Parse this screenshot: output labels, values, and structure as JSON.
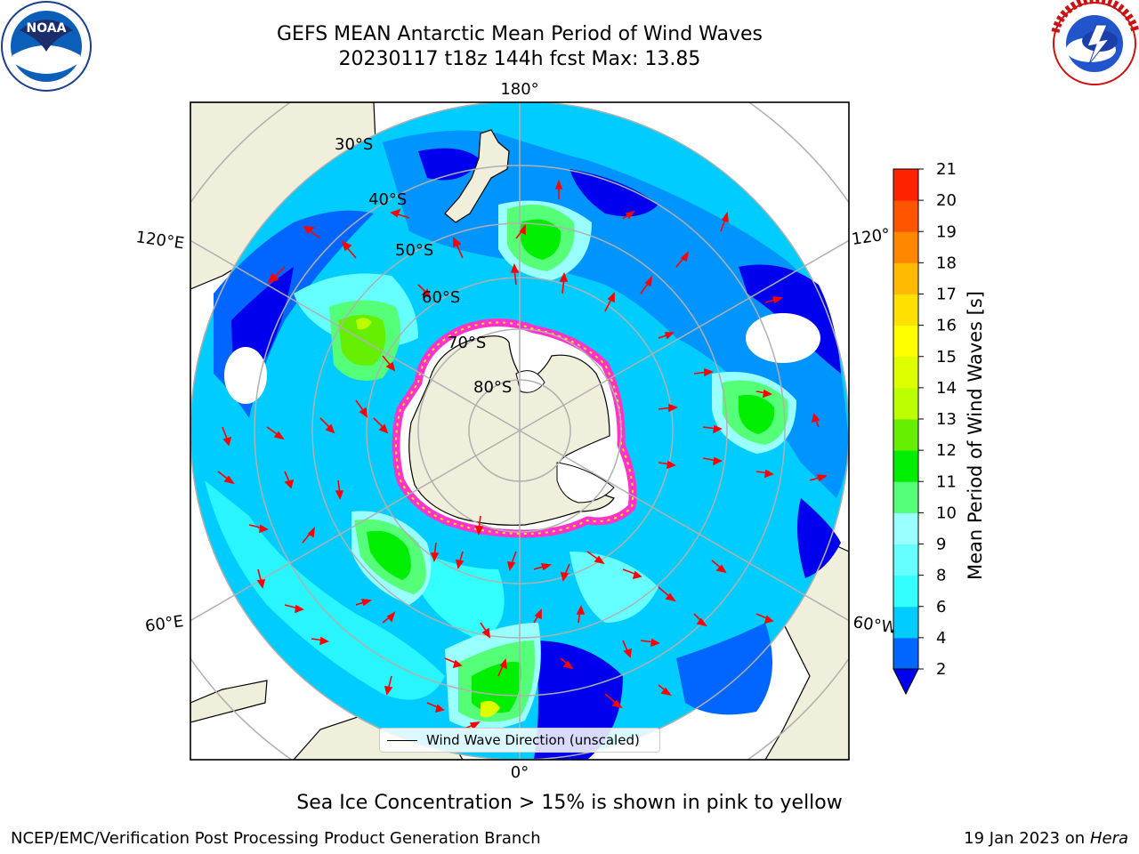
{
  "header": {
    "title_line1": "GEFS MEAN Antarctic Mean Period of Wind Waves",
    "title_line2": "20230117 t18z 144h fcst   Max: 13.85"
  },
  "logos": {
    "left": "NOAA",
    "left_ring": "NATIONAL OCEANIC AND ATMOSPHERIC ADMINISTRATION · U.S. DEPARTMENT OF COMMERCE",
    "right_ring": "NATIONAL WEATHER SERVICE"
  },
  "map": {
    "projection": "south-polar-stereographic",
    "longitude_labels": [
      "180°",
      "120°E",
      "120°",
      "60°E",
      "60°W",
      "0°"
    ],
    "latitude_labels": [
      "30°S",
      "40°S",
      "50°S",
      "60°S",
      "70°S",
      "80°S"
    ],
    "legend_label": "Wind Wave Direction (unscaled)"
  },
  "colorbar": {
    "label": "Mean Period of Wind Waves [s]",
    "ticks": [
      "2",
      "4",
      "6",
      "8",
      "9",
      "10",
      "11",
      "12",
      "13",
      "14",
      "15",
      "16",
      "17",
      "18",
      "19",
      "20",
      "21"
    ],
    "colors": [
      "#0066ff",
      "#00ccff",
      "#33ffff",
      "#66ffff",
      "#99ffff",
      "#55ff77",
      "#00ee00",
      "#66ee00",
      "#bbff00",
      "#ddff00",
      "#ffff00",
      "#ffe000",
      "#ffbb00",
      "#ff8800",
      "#ff5500",
      "#ff2200"
    ],
    "under_color": "#0000ee"
  },
  "caption": "Sea Ice Concentration > 15% is shown in pink to yellow",
  "footer": {
    "left": "NCEP/EMC/Verification Post Processing Product Generation Branch",
    "right_date": "19 Jan 2023 on",
    "right_host": "Hera"
  }
}
